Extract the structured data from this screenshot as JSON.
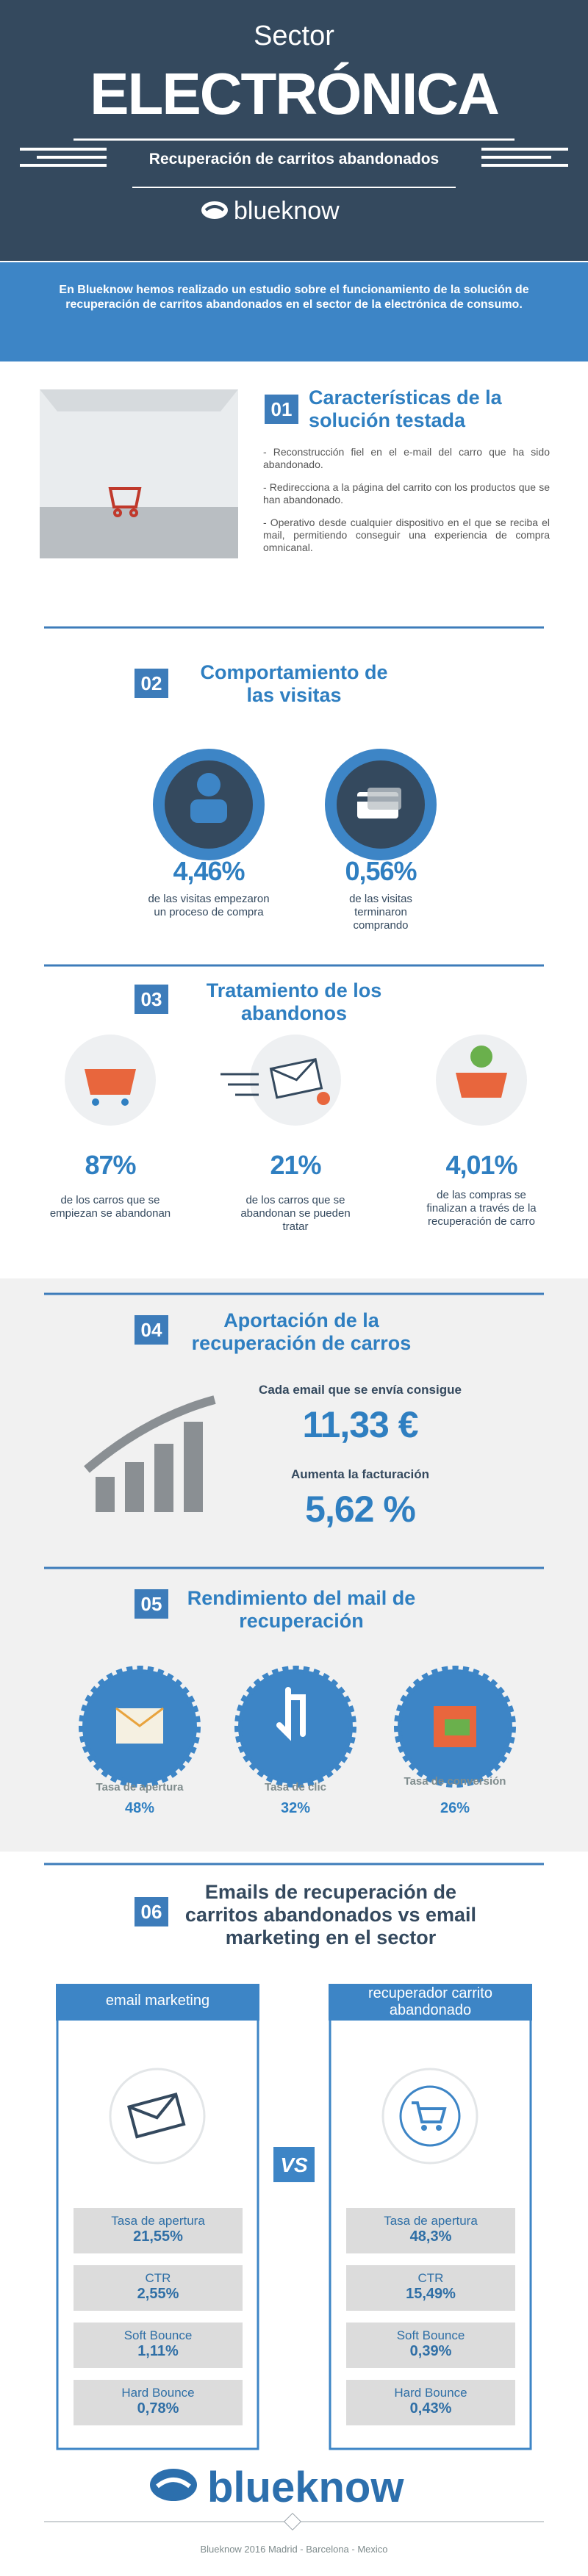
{
  "header": {
    "kicker": "Sector",
    "title": "ELECTRÓNICA",
    "subtitle": "Recuperación de carritos abandonados",
    "brand": "blueknow"
  },
  "intro": "En Blueknow hemos realizado un estudio sobre el funcionamiento de la solución de recuperación de carritos abandonados en el sector de la electrónica de consumo.",
  "sections": [
    {
      "number": "01",
      "title": "Características de la solución testada",
      "bullets": [
        "- Reconstrucción fiel en el e-mail del carro que ha sido abandonado.",
        "- Redirecciona a la página del carrito con los productos que se han abandonado.",
        "- Operativo desde cualquier dispositivo en el que se reciba el mail, permitiendo conseguir una experiencia de compra omnicanal."
      ]
    },
    {
      "number": "02",
      "title": "Comportamiento de las visitas",
      "stats": [
        {
          "value": "4,46%",
          "label": "de las visitas empezaron un proceso de compra"
        },
        {
          "value": "0,56%",
          "label": "de las visitas terminaron comprando"
        }
      ]
    },
    {
      "number": "03",
      "title": "Tratamiento de los abandonos",
      "stats": [
        {
          "value": "87%",
          "label": "de los carros que se empiezan se abandonan"
        },
        {
          "value": "21%",
          "label": "de los carros que se abandonan se pueden tratar"
        },
        {
          "value": "4,01%",
          "label": "de las compras se finalizan a través de la recuperación de carro"
        }
      ]
    },
    {
      "number": "04",
      "title": "Aportación de la recuperación de carros",
      "stats": [
        {
          "label": "Cada email que se envía consigue",
          "value": "11,33 €"
        },
        {
          "label": "Aumenta la facturación",
          "value": "5,62 %"
        }
      ]
    },
    {
      "number": "05",
      "title": "Rendimiento del mail de recuperación",
      "stats": [
        {
          "label": "Tasa de apertura",
          "value": "48%"
        },
        {
          "label": "Tasa de clic",
          "value": "32%"
        },
        {
          "label": "Tasa de conversión",
          "value": "26%"
        }
      ]
    },
    {
      "number": "06",
      "title": "Emails de recuperación de carritos abandonados vs email marketing en el sector",
      "vs": "VS",
      "columns": [
        {
          "name": "email marketing",
          "rows": [
            {
              "label": "Tasa de apertura",
              "value": "21,55%"
            },
            {
              "label": "CTR",
              "value": "2,55%"
            },
            {
              "label": "Soft Bounce",
              "value": "1,11%"
            },
            {
              "label": "Hard Bounce",
              "value": "0,78%"
            }
          ]
        },
        {
          "name": "recuperador carrito abandonado",
          "rows": [
            {
              "label": "Tasa de apertura",
              "value": "48,3%"
            },
            {
              "label": "CTR",
              "value": "15,49%"
            },
            {
              "label": "Soft Bounce",
              "value": "0,39%"
            },
            {
              "label": "Hard Bounce",
              "value": "0,43%"
            }
          ]
        }
      ]
    }
  ],
  "footer": {
    "brand": "blueknow",
    "text": "Blueknow 2016 Madrid - Barcelona - Mexico"
  }
}
